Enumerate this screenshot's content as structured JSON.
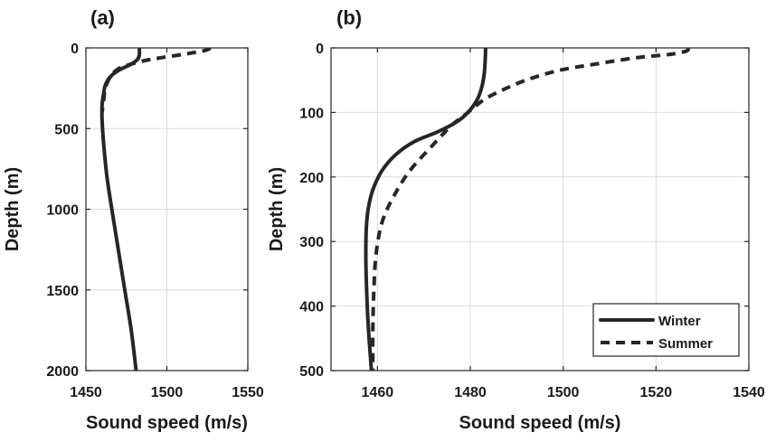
{
  "chart_data": [
    {
      "panel": "(a)",
      "type": "line",
      "xlabel": "Sound speed (m/s)",
      "ylabel": "Depth (m)",
      "xlim": [
        1450,
        1550
      ],
      "ylim": [
        0,
        2000
      ],
      "y_inverted": true,
      "xticks": [
        1450,
        1500,
        1550
      ],
      "yticks": [
        0,
        500,
        1000,
        1500,
        2000
      ],
      "grid": true,
      "series": [
        {
          "name": "Winter",
          "style": "solid",
          "x": [
            1483,
            1483,
            1482,
            1478,
            1470,
            1465,
            1462,
            1461,
            1460,
            1460,
            1461,
            1463,
            1466,
            1470,
            1474,
            1478,
            1481
          ],
          "y": [
            0,
            40,
            70,
            100,
            140,
            180,
            230,
            280,
            350,
            450,
            600,
            800,
            1000,
            1250,
            1500,
            1750,
            2000
          ]
        },
        {
          "name": "Summer",
          "style": "dashed",
          "x": [
            1527,
            1524,
            1516,
            1507,
            1497,
            1488,
            1478,
            1470,
            1465,
            1462,
            1461,
            1460
          ],
          "y": [
            0,
            15,
            30,
            45,
            60,
            75,
            100,
            130,
            180,
            250,
            320,
            400
          ]
        }
      ]
    },
    {
      "panel": "(b)",
      "type": "line",
      "xlabel": "Sound speed (m/s)",
      "ylabel": "Depth (m)",
      "xlim": [
        1450,
        1540
      ],
      "ylim": [
        0,
        500
      ],
      "y_inverted": true,
      "xticks": [
        1460,
        1480,
        1500,
        1520,
        1540
      ],
      "yticks": [
        0,
        100,
        200,
        300,
        400,
        500
      ],
      "grid": true,
      "legend_position": "bottom-right",
      "series": [
        {
          "name": "Winter",
          "style": "solid",
          "x": [
            1483.3,
            1483.2,
            1483.0,
            1482.5,
            1481.5,
            1479.5,
            1477.0,
            1473.0,
            1468.0,
            1464.0,
            1461.0,
            1459.0,
            1458.0,
            1457.6,
            1457.5,
            1457.6,
            1457.8,
            1458.1,
            1458.4,
            1458.7
          ],
          "y": [
            0,
            20,
            40,
            60,
            80,
            100,
            115,
            130,
            145,
            165,
            190,
            220,
            250,
            280,
            320,
            360,
            400,
            440,
            470,
            500
          ]
        },
        {
          "name": "Summer",
          "style": "dashed",
          "x": [
            1527.0,
            1526.5,
            1523.0,
            1516.0,
            1507.0,
            1499.0,
            1492.0,
            1487.0,
            1483.0,
            1479.5,
            1476.0,
            1472.0,
            1467.0,
            1463.5,
            1461.0,
            1459.7,
            1459.2,
            1459.0,
            1459.0
          ],
          "y": [
            0,
            5,
            10,
            15,
            25,
            35,
            50,
            65,
            80,
            100,
            120,
            150,
            190,
            230,
            270,
            320,
            380,
            440,
            500
          ]
        }
      ]
    }
  ]
}
